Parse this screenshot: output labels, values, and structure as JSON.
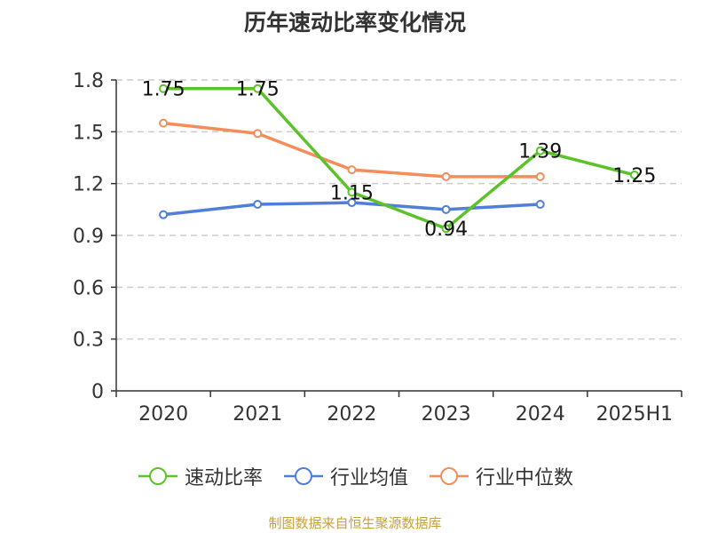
{
  "chart_data": {
    "type": "line",
    "title": "历年速动比率变化情况",
    "categories": [
      "2020",
      "2021",
      "2022",
      "2023",
      "2024",
      "2025H1"
    ],
    "ylim": [
      0,
      1.8
    ],
    "yticks": [
      "0",
      "0.3",
      "0.6",
      "0.9",
      "1.2",
      "1.5",
      "1.8"
    ],
    "grid": true,
    "legend_position": "bottom",
    "series": [
      {
        "name": "速动比率",
        "color": "#5cc22a",
        "values": [
          1.75,
          1.75,
          1.15,
          0.94,
          1.39,
          1.25
        ],
        "labels": [
          "1.75",
          "1.75",
          "1.15",
          "0.94",
          "1.39",
          "1.25"
        ]
      },
      {
        "name": "行业均值",
        "color": "#4f7fd9",
        "values": [
          1.02,
          1.08,
          1.09,
          1.05,
          1.08,
          null
        ]
      },
      {
        "name": "行业中位数",
        "color": "#f58d5a",
        "values": [
          1.55,
          1.49,
          1.28,
          1.24,
          1.24,
          null
        ]
      }
    ]
  },
  "footer": {
    "source": "制图数据来自恒生聚源数据库"
  }
}
